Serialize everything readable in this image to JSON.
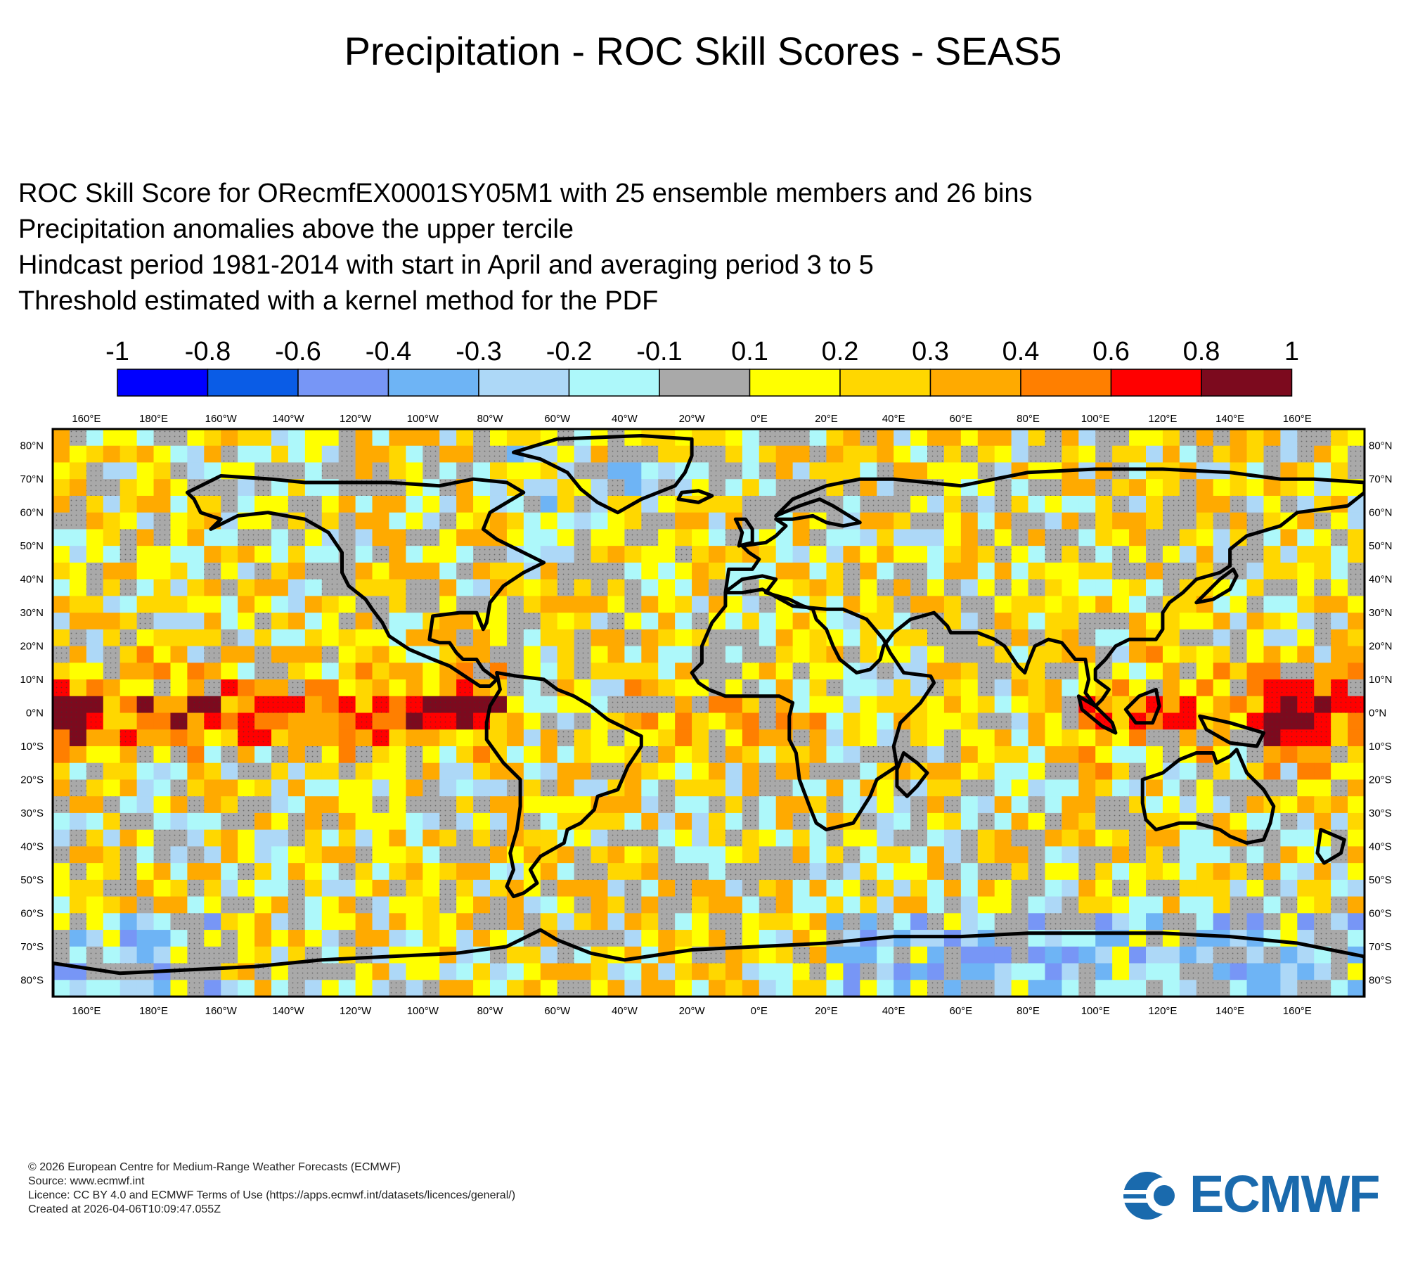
{
  "title": "Precipitation - ROC Skill Scores - SEAS5",
  "subtitle_lines": [
    "ROC Skill Score for ORecmfEX0001SY05M1 with 25 ensemble members and 26 bins",
    "Precipitation anomalies above the upper tercile",
    "Hindcast period 1981-2014 with start in April and averaging period  3 to  5",
    "Threshold estimated with a kernel method for the PDF"
  ],
  "legend": {
    "labels": [
      "-1",
      "-0.8",
      "-0.6",
      "-0.4",
      "-0.3",
      "-0.2",
      "-0.1",
      "0.1",
      "0.2",
      "0.3",
      "0.4",
      "0.6",
      "0.8",
      "1"
    ],
    "colors": [
      "#0000ff",
      "#0a5ce6",
      "#7796f6",
      "#6eb4f5",
      "#add8f7",
      "#adf8fa",
      "#a9a9a9",
      "#ffff00",
      "#ffd700",
      "#ffaa00",
      "#ff7f00",
      "#ff0000",
      "#7c0a1e"
    ]
  },
  "map": {
    "x_ticks": [
      "160°E",
      "180°E",
      "160°W",
      "140°W",
      "120°W",
      "100°W",
      "80°W",
      "60°W",
      "40°W",
      "20°W",
      "0°E",
      "20°E",
      "40°E",
      "60°E",
      "80°E",
      "100°E",
      "120°E",
      "140°E",
      "160°E"
    ],
    "y_ticks": [
      "80°N",
      "70°N",
      "60°N",
      "50°N",
      "40°N",
      "30°N",
      "20°N",
      "10°N",
      "0°N",
      "10°S",
      "20°S",
      "30°S",
      "40°S",
      "50°S",
      "60°S",
      "70°S",
      "80°S"
    ],
    "lon_range": [
      150,
      540
    ],
    "lat_range": [
      -85,
      85
    ]
  },
  "footer_lines": [
    "© 2026 European Centre for Medium-Range Weather Forecasts (ECMWF)",
    "Source: www.ecmwf.int",
    "Licence: CC BY 4.0 and ECMWF Terms of Use (https://apps.ecmwf.int/datasets/licences/general/)",
    "Created at 2026-04-06T10:09:47.055Z"
  ],
  "logo_text": "ECMWF",
  "colors": {
    "logo": "#1a6aad"
  }
}
